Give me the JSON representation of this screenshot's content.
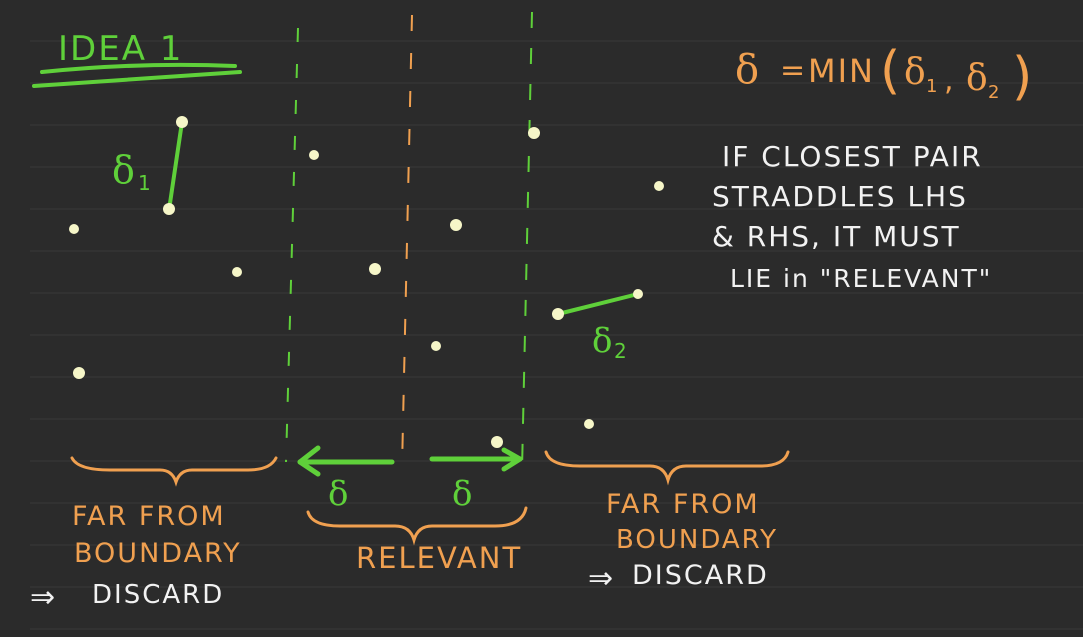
{
  "colors": {
    "background": "#2b2b2b",
    "rule_line": "#3a3a3a",
    "green": "#5fd03a",
    "orange": "#f0a050",
    "white": "#f2f2f2",
    "point": "#f6f6c8"
  },
  "title": "IDEA 1",
  "formula": {
    "delta": "δ",
    "equals": "=",
    "min": "MIN",
    "open": "(",
    "d1": "δ",
    "d1_sub": "1",
    "comma": ",",
    "d2": "δ",
    "d2_sub": "2",
    "close": ")"
  },
  "note_lines": [
    "IF CLOSEST PAIR",
    "STRADDLES LHS",
    "& RHS, IT MUST",
    "LIE in \"RELEVANT\""
  ],
  "delta1_label": {
    "symbol": "δ",
    "sub": "1"
  },
  "delta2_label": {
    "symbol": "δ",
    "sub": "2"
  },
  "left_region": {
    "line1": "FAR FROM",
    "line2": "BOUNDARY",
    "arrow": "⇒",
    "action": "DISCARD"
  },
  "relevant_label": "RELEVANT",
  "right_region": {
    "line1": "FAR FROM",
    "line2": "BOUNDARY",
    "arrow": "⇒",
    "action": "DISCARD"
  },
  "strip_delta_left": "δ",
  "strip_delta_right": "δ"
}
